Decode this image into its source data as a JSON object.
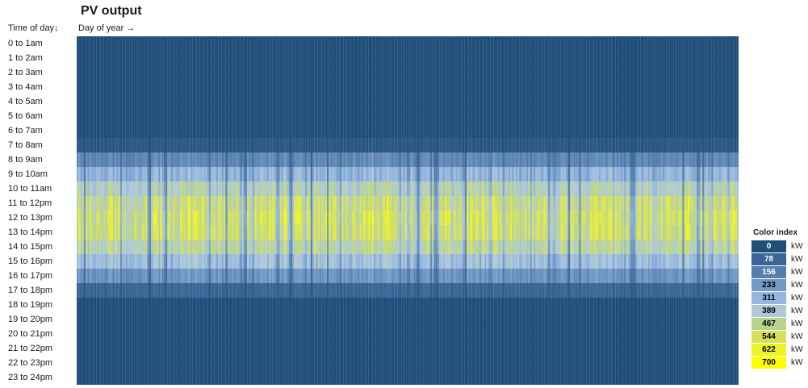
{
  "title": "PV output",
  "row_axis_label": "Time of day↓",
  "col_axis_label": "Day of year →",
  "legend": {
    "title": "Color index",
    "unit": "kW",
    "entries": [
      {
        "value": "0",
        "color": "#1f4e79",
        "text_color": "#ffffff"
      },
      {
        "value": "78",
        "color": "#3a6596",
        "text_color": "#ffffff"
      },
      {
        "value": "156",
        "color": "#567fae",
        "text_color": "#ffffff"
      },
      {
        "value": "233",
        "color": "#7399c6",
        "text_color": "#000000"
      },
      {
        "value": "311",
        "color": "#93b7e0",
        "text_color": "#000000"
      },
      {
        "value": "389",
        "color": "#b0c9da",
        "text_color": "#000000"
      },
      {
        "value": "467",
        "color": "#b9d38f",
        "text_color": "#000000"
      },
      {
        "value": "544",
        "color": "#d6e35a",
        "text_color": "#000000"
      },
      {
        "value": "622",
        "color": "#eff22b",
        "text_color": "#000000"
      },
      {
        "value": "700",
        "color": "#ffff00",
        "text_color": "#000000"
      }
    ]
  },
  "chart_data": {
    "type": "heatmap",
    "title": "PV output",
    "row_label": "Time of day↓",
    "col_label": "Day of year →",
    "rows": [
      "0 to 1am",
      "1 to 2am",
      "2 to 3am",
      "3 to 4am",
      "4 to 5am",
      "5 to 6am",
      "6 to 7am",
      "7 to 8am",
      "8 to 9am",
      "9 to 10am",
      "10 to 11am",
      "11 to 12pm",
      "12 to 13pm",
      "13 to 14pm",
      "14 to 15pm",
      "15 to 16pm",
      "16 to 17pm",
      "17 to 18pm",
      "18 to 19pm",
      "19 to 20pm",
      "20 to 21pm",
      "21 to 22pm",
      "22 to 23pm",
      "23 to 24pm"
    ],
    "columns": 365,
    "unit": "kW",
    "value_range": [
      0,
      700
    ],
    "typical_hourly_kw": [
      0,
      0,
      0,
      0,
      0,
      0,
      0,
      30,
      190,
      330,
      450,
      530,
      560,
      550,
      480,
      370,
      230,
      80,
      0,
      0,
      0,
      0,
      0,
      0
    ]
  }
}
